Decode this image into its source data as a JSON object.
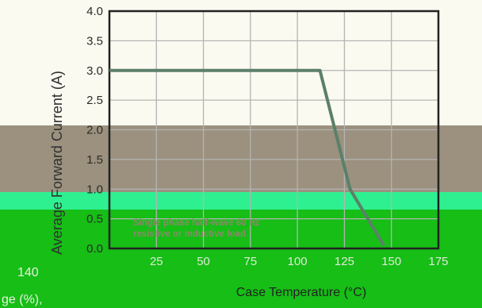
{
  "chart_data": {
    "type": "line",
    "ylabel": "Average Forward Current (A)",
    "xlabel": "Case Temperature (°C)",
    "ylim": [
      0,
      4
    ],
    "xlim": [
      0,
      175
    ],
    "yticks": [
      "0.0",
      "0.5",
      "1.0",
      "1.5",
      "2.0",
      "2.5",
      "3.0",
      "3.5",
      "4.0"
    ],
    "xticks": [
      "25",
      "50",
      "75",
      "100",
      "125",
      "150",
      "175"
    ],
    "grid": true,
    "series": [
      {
        "x": [
          0,
          112,
          128,
          146
        ],
        "y": [
          3.0,
          3.0,
          1.0,
          0.05
        ]
      }
    ],
    "annotation": [
      "Single phase half-wave 60 Hz",
      "resistive or inductive load"
    ],
    "colors": {
      "line": "#5b8069",
      "grid": "#b4b4b4",
      "frame": "#222222"
    }
  },
  "edge_text": {
    "left_tick": "140",
    "left_label": "ge (%),"
  }
}
